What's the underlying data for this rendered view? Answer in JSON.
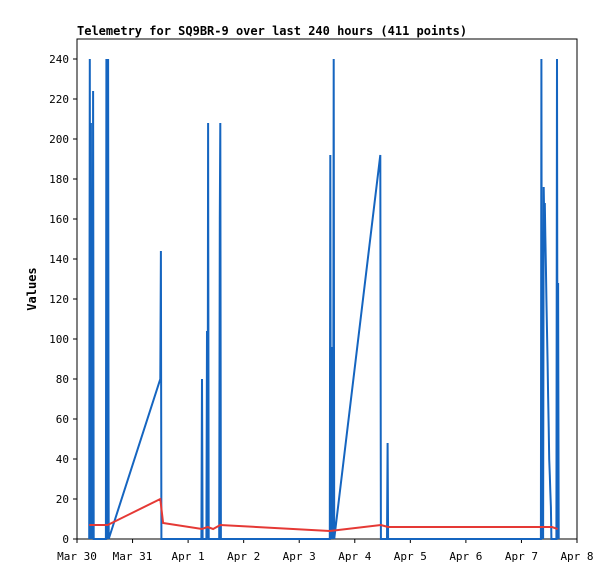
{
  "chart_data": {
    "type": "line",
    "title": "Telemetry for SQ9BR-9 over last 240 hours (411 points)",
    "xlabel": "",
    "ylabel": "Values",
    "x_ticks": [
      "Mar 30",
      "Mar 31",
      "Apr 1",
      "Apr 2",
      "Apr 3",
      "Apr 4",
      "Apr 5",
      "Apr 6",
      "Apr 7",
      "Apr 8"
    ],
    "xlim": [
      0,
      9
    ],
    "ylim": [
      0,
      250
    ],
    "y_ticks": [
      0,
      20,
      40,
      60,
      80,
      100,
      120,
      140,
      160,
      180,
      200,
      220,
      240
    ],
    "grid": false,
    "series": [
      {
        "color": "#1565c0",
        "points": [
          [
            0.22,
            0
          ],
          [
            0.23,
            240
          ],
          [
            0.24,
            0
          ],
          [
            0.25,
            208
          ],
          [
            0.26,
            0
          ],
          [
            0.27,
            48
          ],
          [
            0.28,
            0
          ],
          [
            0.29,
            224
          ],
          [
            0.3,
            0
          ],
          [
            0.52,
            0
          ],
          [
            0.53,
            240
          ],
          [
            0.54,
            0
          ],
          [
            0.56,
            240
          ],
          [
            0.57,
            0
          ],
          [
            1.5,
            80
          ],
          [
            1.51,
            144
          ],
          [
            1.52,
            0
          ],
          [
            2.24,
            0
          ],
          [
            2.25,
            80
          ],
          [
            2.26,
            0
          ],
          [
            2.33,
            0
          ],
          [
            2.34,
            104
          ],
          [
            2.35,
            0
          ],
          [
            2.36,
            208
          ],
          [
            2.37,
            0
          ],
          [
            2.56,
            0
          ],
          [
            2.57,
            160
          ],
          [
            2.58,
            208
          ],
          [
            2.59,
            0
          ],
          [
            4.55,
            0
          ],
          [
            4.56,
            192
          ],
          [
            4.57,
            0
          ],
          [
            4.58,
            96
          ],
          [
            4.59,
            0
          ],
          [
            4.6,
            64
          ],
          [
            4.61,
            0
          ],
          [
            4.62,
            240
          ],
          [
            4.63,
            0
          ],
          [
            5.46,
            192
          ],
          [
            5.47,
            0
          ],
          [
            5.58,
            0
          ],
          [
            5.59,
            48
          ],
          [
            5.6,
            0
          ],
          [
            8.35,
            0
          ],
          [
            8.36,
            240
          ],
          [
            8.37,
            0
          ],
          [
            8.38,
            128
          ],
          [
            8.39,
            0
          ],
          [
            8.4,
            176
          ],
          [
            8.41,
            160
          ],
          [
            8.42,
            168
          ],
          [
            8.43,
            152
          ],
          [
            8.44,
            136
          ],
          [
            8.45,
            120
          ],
          [
            8.46,
            104
          ],
          [
            8.47,
            88
          ],
          [
            8.48,
            72
          ],
          [
            8.49,
            56
          ],
          [
            8.5,
            40
          ],
          [
            8.51,
            32
          ],
          [
            8.52,
            24
          ],
          [
            8.53,
            16
          ],
          [
            8.54,
            0
          ],
          [
            8.63,
            0
          ],
          [
            8.64,
            240
          ],
          [
            8.65,
            0
          ],
          [
            8.66,
            128
          ],
          [
            8.67,
            0
          ]
        ]
      },
      {
        "color": "#e53935",
        "points": [
          [
            0.22,
            7
          ],
          [
            0.55,
            7
          ],
          [
            1.5,
            20
          ],
          [
            1.55,
            8
          ],
          [
            2.25,
            5
          ],
          [
            2.35,
            6
          ],
          [
            2.45,
            5
          ],
          [
            2.58,
            7
          ],
          [
            4.55,
            4
          ],
          [
            5.47,
            7
          ],
          [
            5.6,
            6
          ],
          [
            8.55,
            6
          ],
          [
            8.65,
            5
          ]
        ]
      }
    ]
  }
}
